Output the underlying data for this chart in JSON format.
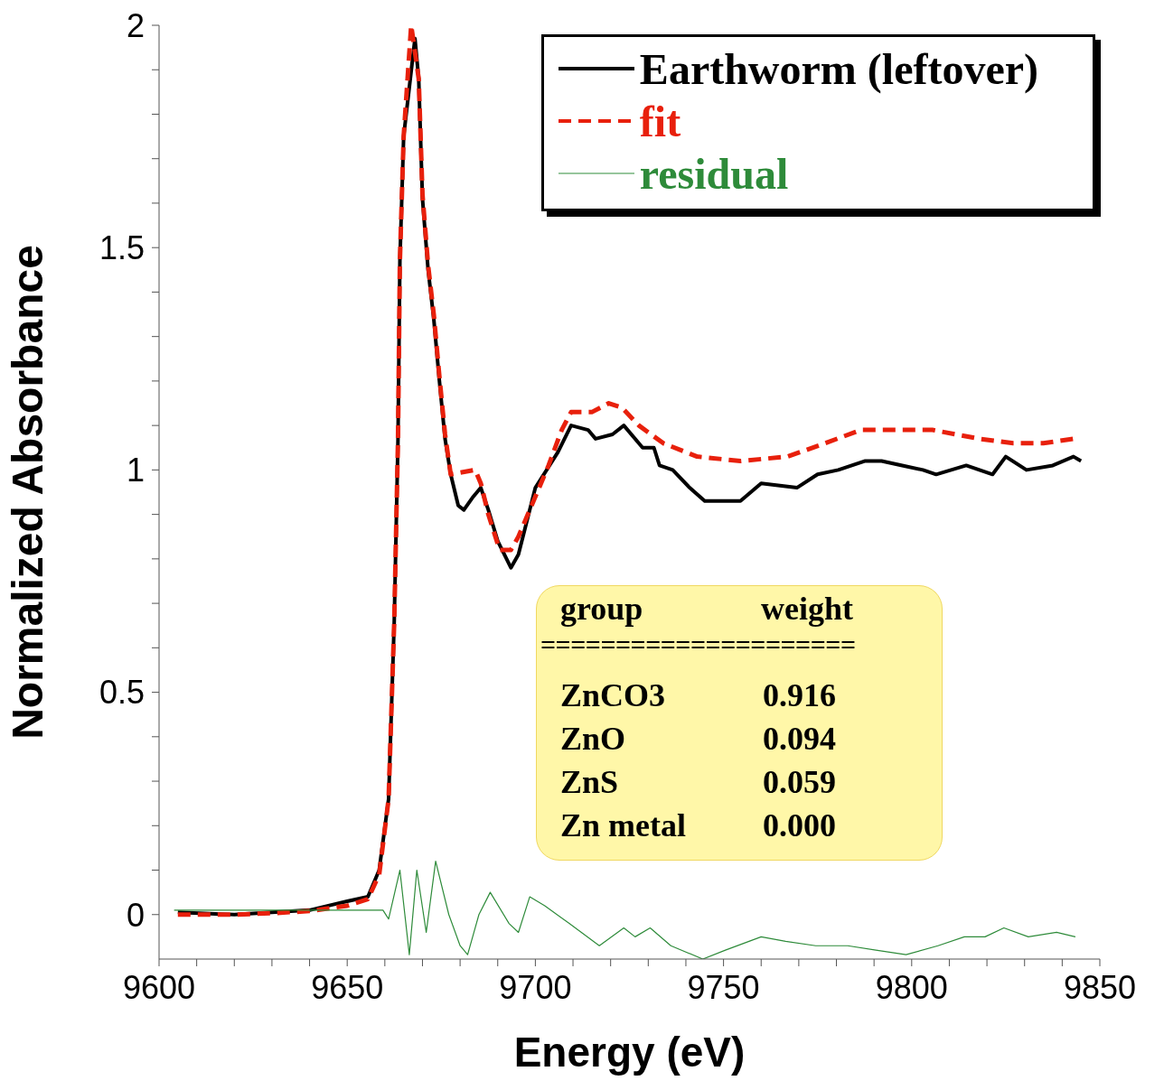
{
  "chart_data": {
    "type": "line",
    "xlabel": "Energy (eV)",
    "ylabel": "Normalized Absorbance",
    "xlim": [
      9600,
      9850
    ],
    "ylim": [
      -0.1,
      2
    ],
    "xticks": [
      9600,
      {
        "value": 9610,
        "label": null
      },
      {
        "value": 9620,
        "label": null
      },
      {
        "value": 9630,
        "label": null
      },
      {
        "value": 9640,
        "label": null
      },
      9650,
      {
        "value": 9660,
        "label": null
      },
      {
        "value": 9670,
        "label": null
      },
      {
        "value": 9680,
        "label": null
      },
      {
        "value": 9690,
        "label": null
      },
      9700,
      {
        "value": 9710,
        "label": null
      },
      {
        "value": 9720,
        "label": null
      },
      {
        "value": 9730,
        "label": null
      },
      {
        "value": 9740,
        "label": null
      },
      9750,
      {
        "value": 9760,
        "label": null
      },
      {
        "value": 9770,
        "label": null
      },
      {
        "value": 9780,
        "label": null
      },
      {
        "value": 9790,
        "label": null
      },
      9800,
      {
        "value": 9810,
        "label": null
      },
      {
        "value": 9820,
        "label": null
      },
      {
        "value": 9830,
        "label": null
      },
      {
        "value": 9840,
        "label": null
      },
      9850
    ],
    "yticks": [
      0,
      {
        "value": 0.1,
        "label": null
      },
      {
        "value": 0.2,
        "label": null
      },
      {
        "value": 0.3,
        "label": null
      },
      {
        "value": 0.4,
        "label": null
      },
      0.5,
      {
        "value": 0.6,
        "label": null
      },
      {
        "value": 0.7,
        "label": null
      },
      {
        "value": 0.8,
        "label": null
      },
      {
        "value": 0.9,
        "label": null
      },
      1,
      {
        "value": 1.1,
        "label": null
      },
      {
        "value": 1.2,
        "label": null
      },
      {
        "value": 1.3,
        "label": null
      },
      {
        "value": 1.4,
        "label": null
      },
      1.5,
      {
        "value": 1.6,
        "label": null
      },
      {
        "value": 1.7,
        "label": null
      },
      {
        "value": 1.8,
        "label": null
      },
      {
        "value": 1.9,
        "label": null
      },
      2
    ],
    "legend": "top right",
    "series": [
      {
        "name": "Earthworm (leftover)",
        "color": "#000000",
        "line_style": "solid",
        "x": [
          9605,
          9620,
          9630,
          9640,
          9645,
          9650,
          9655.5,
          9658.5,
          9661,
          9662.5,
          9663.5,
          9664,
          9665,
          9668,
          9669,
          9670,
          9671.5,
          9673,
          9674.5,
          9676,
          9677.5,
          9679.5,
          9681,
          9683.5,
          9685.5,
          9687.5,
          9690,
          9693.5,
          9695.5,
          9700,
          9706,
          9709.5,
          9714,
          9716,
          9720.5,
          9723.5,
          9728.5,
          9731.5,
          9733,
          9736.5,
          9741,
          9745,
          9750,
          9754.5,
          9760,
          9769.5,
          9775,
          9780.5,
          9787.5,
          9792,
          9797.5,
          9803,
          9806.5,
          9814.5,
          9821.5,
          9825,
          9830.5,
          9837.5,
          9843,
          9845
        ],
        "values": [
          0.005,
          0.0,
          0.005,
          0.01,
          0.02,
          0.03,
          0.04,
          0.1,
          0.26,
          0.66,
          1.07,
          1.47,
          1.75,
          1.97,
          1.88,
          1.61,
          1.45,
          1.34,
          1.2,
          1.07,
          0.99,
          0.92,
          0.91,
          0.94,
          0.96,
          0.91,
          0.84,
          0.78,
          0.81,
          0.96,
          1.04,
          1.1,
          1.09,
          1.07,
          1.08,
          1.1,
          1.05,
          1.05,
          1.01,
          1.0,
          0.96,
          0.93,
          0.93,
          0.93,
          0.97,
          0.96,
          0.99,
          1.0,
          1.02,
          1.02,
          1.01,
          1.0,
          0.99,
          1.01,
          0.99,
          1.03,
          1.0,
          1.01,
          1.03,
          1.02
        ]
      },
      {
        "name": "fit",
        "color": "#e8200c",
        "line_style": "dashed",
        "x": [
          9605,
          9620,
          9630,
          9640,
          9650,
          9655.5,
          9658.5,
          9661,
          9662.5,
          9663.5,
          9664,
          9665,
          9667,
          9669,
          9670,
          9671.5,
          9673,
          9674.5,
          9676,
          9677.5,
          9684,
          9685.5,
          9687.5,
          9690.5,
          9693.5,
          9695.5,
          9699,
          9703.5,
          9707,
          9709.5,
          9715,
          9719.5,
          9723,
          9727.5,
          9734,
          9743,
          9754.5,
          9767,
          9777,
          9786.5,
          9797.5,
          9805.5,
          9818,
          9827,
          9835,
          9843
        ],
        "values": [
          0.0,
          0.0,
          0.003,
          0.008,
          0.02,
          0.035,
          0.09,
          0.26,
          0.66,
          1.07,
          1.47,
          1.75,
          2.0,
          1.88,
          1.62,
          1.46,
          1.35,
          1.21,
          1.08,
          0.99,
          1.0,
          0.97,
          0.9,
          0.82,
          0.82,
          0.85,
          0.92,
          1.01,
          1.09,
          1.13,
          1.13,
          1.15,
          1.14,
          1.1,
          1.06,
          1.03,
          1.02,
          1.03,
          1.06,
          1.09,
          1.09,
          1.09,
          1.07,
          1.06,
          1.06,
          1.07
        ]
      },
      {
        "name": "residual",
        "color": "#2e8b3a",
        "line_style": "solid",
        "x": [
          9604,
          9630,
          9650,
          9659.5,
          9661,
          9664,
          9666.5,
          9668.5,
          9671,
          9673.5,
          9677,
          9680,
          9682,
          9685,
          9688,
          9693,
          9695.5,
          9698.5,
          9702.5,
          9709,
          9717,
          9723.5,
          9726.5,
          9730.5,
          9736,
          9744.5,
          9750.5,
          9760,
          9766.5,
          9774.5,
          9783,
          9790.5,
          9798.5,
          9807,
          9814,
          9819.5,
          9824.5,
          9831,
          9838.5,
          9843.5
        ],
        "values": [
          0.01,
          0.01,
          0.01,
          0.01,
          -0.01,
          0.1,
          -0.09,
          0.1,
          -0.04,
          0.12,
          0.0,
          -0.07,
          -0.09,
          0.0,
          0.05,
          -0.02,
          -0.04,
          0.04,
          0.02,
          -0.02,
          -0.07,
          -0.03,
          -0.05,
          -0.03,
          -0.07,
          -0.1,
          -0.08,
          -0.05,
          -0.06,
          -0.07,
          -0.07,
          -0.08,
          -0.09,
          -0.07,
          -0.05,
          -0.05,
          -0.03,
          -0.05,
          -0.04,
          -0.05
        ]
      }
    ],
    "annotations": [
      "group",
      "weight",
      "=====================",
      "ZnCO3",
      "0.916",
      "ZnO",
      "0.094",
      "ZnS",
      "0.059",
      "Zn metal",
      "0.000"
    ]
  }
}
